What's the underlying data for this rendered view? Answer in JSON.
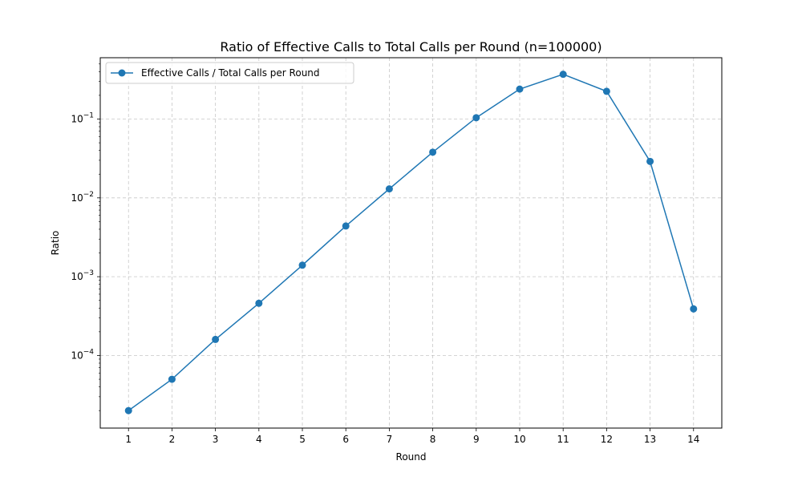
{
  "chart_data": {
    "type": "line",
    "title": "Ratio of Effective Calls to Total Calls per Round (n=100000)",
    "xlabel": "Round",
    "ylabel": "Ratio",
    "yscale": "log",
    "ylim": [
      1.2e-05,
      0.6
    ],
    "xlim": [
      0.35,
      14.65
    ],
    "x": [
      1,
      2,
      3,
      4,
      5,
      6,
      7,
      8,
      9,
      10,
      11,
      12,
      13,
      14
    ],
    "x_ticks": [
      1,
      2,
      3,
      4,
      5,
      6,
      7,
      8,
      9,
      10,
      11,
      12,
      13,
      14
    ],
    "y_ticks": [
      {
        "value": 0.0001,
        "base": "10",
        "exp": "−4"
      },
      {
        "value": 0.001,
        "base": "10",
        "exp": "−3"
      },
      {
        "value": 0.01,
        "base": "10",
        "exp": "−2"
      },
      {
        "value": 0.1,
        "base": "10",
        "exp": "−1"
      }
    ],
    "grid": true,
    "legend_position": "top-left",
    "series": [
      {
        "name": "Effective Calls / Total Calls per Round",
        "color": "#1f77b4",
        "marker": "circle",
        "values": [
          2e-05,
          5e-05,
          0.00016,
          0.00046,
          0.0014,
          0.0044,
          0.013,
          0.038,
          0.104,
          0.24,
          0.37,
          0.225,
          0.029,
          0.00039
        ]
      }
    ]
  }
}
